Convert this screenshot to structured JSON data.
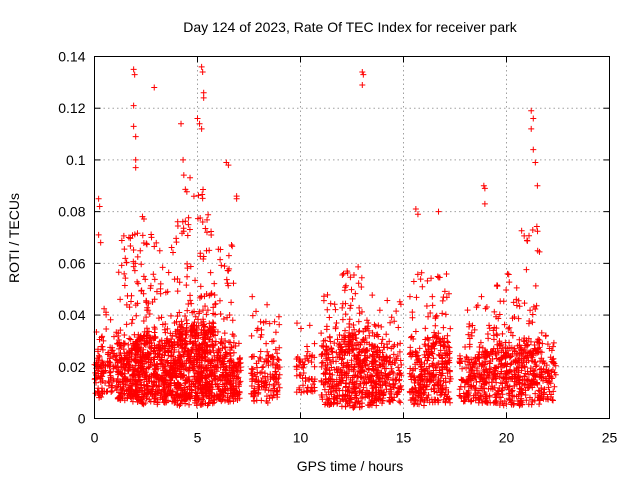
{
  "chart_data": {
    "type": "scatter",
    "title": "Day 124 of 2023, Rate Of TEC Index for receiver park",
    "xlabel": "GPS time / hours",
    "ylabel": "ROTI / TECUs",
    "xlim": [
      0,
      25
    ],
    "ylim": [
      0,
      0.14
    ],
    "xticks": [
      0,
      5,
      10,
      15,
      20,
      25
    ],
    "xtick_labels": [
      "0",
      "5",
      "10",
      "15",
      "20",
      "25"
    ],
    "yticks": [
      0,
      0.02,
      0.04,
      0.06,
      0.08,
      0.1,
      0.12,
      0.14
    ],
    "ytick_labels": [
      "0",
      "0.02",
      "0.04",
      "0.06",
      "0.08",
      "0.1",
      "0.12",
      "0.14"
    ],
    "grid": true,
    "marker": "+",
    "color": "#ff0000",
    "series": [
      {
        "name": "ROTI",
        "notable_points": [
          [
            0.2,
            0.085
          ],
          [
            0.25,
            0.082
          ],
          [
            0.2,
            0.071
          ],
          [
            0.3,
            0.068
          ],
          [
            1.9,
            0.135
          ],
          [
            1.95,
            0.133
          ],
          [
            1.9,
            0.121
          ],
          [
            1.9,
            0.113
          ],
          [
            2.0,
            0.109
          ],
          [
            2.0,
            0.1
          ],
          [
            2.0,
            0.097
          ],
          [
            2.9,
            0.128
          ],
          [
            4.2,
            0.114
          ],
          [
            4.3,
            0.1
          ],
          [
            5.2,
            0.136
          ],
          [
            5.25,
            0.134
          ],
          [
            5.3,
            0.126
          ],
          [
            5.3,
            0.124
          ],
          [
            5.0,
            0.116
          ],
          [
            5.1,
            0.114
          ],
          [
            5.2,
            0.112
          ],
          [
            6.4,
            0.099
          ],
          [
            6.5,
            0.098
          ],
          [
            6.9,
            0.086
          ],
          [
            6.9,
            0.085
          ],
          [
            13.0,
            0.134
          ],
          [
            13.05,
            0.133
          ],
          [
            13.0,
            0.129
          ],
          [
            15.6,
            0.081
          ],
          [
            15.7,
            0.079
          ],
          [
            16.7,
            0.08
          ],
          [
            18.9,
            0.09
          ],
          [
            18.95,
            0.089
          ],
          [
            18.95,
            0.083
          ],
          [
            21.2,
            0.119
          ],
          [
            21.3,
            0.116
          ],
          [
            21.2,
            0.112
          ],
          [
            21.3,
            0.104
          ],
          [
            21.4,
            0.099
          ],
          [
            21.5,
            0.09
          ]
        ],
        "activity_bands": [
          {
            "from": 0.0,
            "to": 0.4,
            "low": 0.008,
            "high": 0.022,
            "peak": 0.035,
            "count": 55
          },
          {
            "from": 0.4,
            "to": 1.1,
            "low": 0.01,
            "high": 0.026,
            "peak": 0.045,
            "count": 70
          },
          {
            "from": 1.1,
            "to": 2.1,
            "low": 0.006,
            "high": 0.03,
            "peak": 0.072,
            "count": 260
          },
          {
            "from": 2.1,
            "to": 3.1,
            "low": 0.005,
            "high": 0.032,
            "peak": 0.08,
            "count": 290
          },
          {
            "from": 3.1,
            "to": 4.0,
            "low": 0.006,
            "high": 0.03,
            "peak": 0.07,
            "count": 240
          },
          {
            "from": 4.0,
            "to": 5.0,
            "low": 0.005,
            "high": 0.035,
            "peak": 0.095,
            "count": 310
          },
          {
            "from": 5.0,
            "to": 5.8,
            "low": 0.005,
            "high": 0.036,
            "peak": 0.09,
            "count": 290
          },
          {
            "from": 5.8,
            "to": 6.8,
            "low": 0.006,
            "high": 0.03,
            "peak": 0.068,
            "count": 230
          },
          {
            "from": 6.8,
            "to": 7.1,
            "low": 0.006,
            "high": 0.022,
            "peak": 0.03,
            "count": 45
          },
          {
            "from": 7.6,
            "to": 8.5,
            "low": 0.006,
            "high": 0.024,
            "peak": 0.048,
            "count": 95
          },
          {
            "from": 8.5,
            "to": 9.0,
            "low": 0.008,
            "high": 0.024,
            "peak": 0.04,
            "count": 60
          },
          {
            "from": 9.8,
            "to": 10.7,
            "low": 0.01,
            "high": 0.024,
            "peak": 0.04,
            "count": 60
          },
          {
            "from": 11.0,
            "to": 12.0,
            "low": 0.005,
            "high": 0.028,
            "peak": 0.048,
            "count": 160
          },
          {
            "from": 12.0,
            "to": 13.0,
            "low": 0.004,
            "high": 0.032,
            "peak": 0.06,
            "count": 230
          },
          {
            "from": 13.0,
            "to": 14.0,
            "low": 0.005,
            "high": 0.028,
            "peak": 0.055,
            "count": 200
          },
          {
            "from": 14.0,
            "to": 14.9,
            "low": 0.006,
            "high": 0.024,
            "peak": 0.048,
            "count": 120
          },
          {
            "from": 15.3,
            "to": 16.0,
            "low": 0.005,
            "high": 0.026,
            "peak": 0.058,
            "count": 120
          },
          {
            "from": 16.0,
            "to": 17.3,
            "low": 0.006,
            "high": 0.032,
            "peak": 0.06,
            "count": 230
          },
          {
            "from": 17.7,
            "to": 18.6,
            "low": 0.006,
            "high": 0.024,
            "peak": 0.045,
            "count": 110
          },
          {
            "from": 18.6,
            "to": 19.5,
            "low": 0.006,
            "high": 0.026,
            "peak": 0.05,
            "count": 150
          },
          {
            "from": 19.5,
            "to": 20.6,
            "low": 0.005,
            "high": 0.028,
            "peak": 0.06,
            "count": 190
          },
          {
            "from": 20.6,
            "to": 21.7,
            "low": 0.005,
            "high": 0.03,
            "peak": 0.075,
            "count": 200
          },
          {
            "from": 21.7,
            "to": 22.4,
            "low": 0.006,
            "high": 0.022,
            "peak": 0.034,
            "count": 70
          }
        ]
      }
    ]
  }
}
